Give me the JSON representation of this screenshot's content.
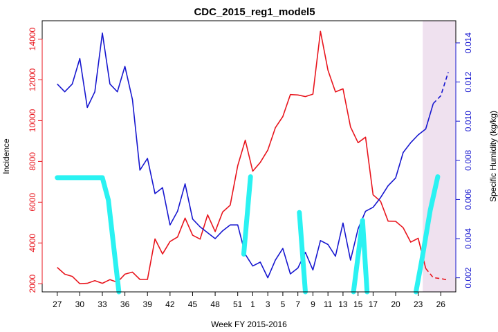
{
  "chart_data": {
    "type": "line",
    "title": "CDC_2015_reg1_model5",
    "xlabel": "Week FY 2015-2016",
    "ylabel_left": "Incidence",
    "ylabel_right": "Specific Humidity (kg/kg)",
    "x_tick_labels": [
      "27",
      "30",
      "33",
      "36",
      "39",
      "42",
      "45",
      "48",
      "51",
      "1",
      "3",
      "5",
      "7",
      "9",
      "11",
      "13",
      "15",
      "17",
      "20",
      "23",
      "26"
    ],
    "x_tick_index": [
      0,
      3,
      6,
      9,
      12,
      15,
      18,
      21,
      24,
      26,
      28,
      30,
      32,
      34,
      36,
      38,
      40,
      42,
      45,
      48,
      51
    ],
    "xlim": [
      -2,
      53
    ],
    "y_left": {
      "ticks": [
        2000,
        4000,
        6000,
        8000,
        10000,
        12000,
        14000
      ],
      "range": [
        1600,
        14900
      ]
    },
    "y_right": {
      "ticks": [
        0.002,
        0.004,
        0.006,
        0.008,
        0.01,
        0.012,
        0.014
      ],
      "tick_labels": [
        "0.002",
        "0.004",
        "0.006",
        "0.008",
        "0.010",
        "0.012",
        "0.014"
      ],
      "range": [
        0.00128,
        0.01513
      ]
    },
    "colors": {
      "incidence": "#e8141c",
      "humidity": "#1616cf",
      "cyan": "#2af2f2",
      "shade": "#efe1ef",
      "left_axis": "#e8141c",
      "right_axis": "#1616cf"
    },
    "forecast_region": {
      "x_start": 48.6,
      "x_end": 53
    },
    "series": [
      {
        "role": "incidence",
        "axis": "left",
        "style": "solid",
        "x": [
          0,
          1,
          2,
          3,
          4,
          5,
          6,
          7,
          8,
          9,
          10,
          11,
          12,
          13,
          14,
          15,
          16,
          17,
          18,
          19,
          20,
          21,
          22,
          23,
          24,
          25,
          26,
          27,
          28,
          29,
          30,
          31,
          32,
          33,
          34,
          35,
          36,
          37,
          38,
          39,
          40,
          41,
          42,
          43,
          44,
          45,
          46,
          47,
          48,
          49
        ],
        "y": [
          2800,
          2470,
          2360,
          2000,
          2020,
          2150,
          2020,
          2200,
          2070,
          2470,
          2570,
          2210,
          2210,
          4200,
          3460,
          4070,
          4290,
          5220,
          4380,
          4190,
          5380,
          4560,
          5520,
          5850,
          7790,
          9040,
          7520,
          7950,
          8560,
          9650,
          10200,
          11280,
          11260,
          11180,
          11300,
          14380,
          12470,
          11410,
          11560,
          9690,
          8920,
          9190,
          6360,
          6040,
          5070,
          5060,
          4750,
          4040,
          4230,
          2750
        ]
      },
      {
        "role": "incidence",
        "axis": "left",
        "style": "dashed",
        "x": [
          49,
          50,
          51,
          52
        ],
        "y": [
          2750,
          2300,
          2250,
          2180
        ]
      },
      {
        "role": "humidity",
        "axis": "right",
        "style": "solid",
        "x": [
          0,
          1,
          2,
          3,
          4,
          5,
          6,
          7,
          8,
          9,
          10,
          11,
          12,
          13,
          14,
          15,
          16,
          17,
          18,
          19,
          20,
          21,
          22,
          23,
          24,
          25,
          26,
          27,
          28,
          29,
          30,
          31,
          32,
          33,
          34,
          35,
          36,
          37,
          38,
          39,
          40,
          41,
          42,
          43,
          44,
          45,
          46,
          47,
          48,
          49,
          50
        ],
        "y": [
          0.0119,
          0.0115,
          0.0119,
          0.0132,
          0.0107,
          0.0115,
          0.0145,
          0.0119,
          0.0115,
          0.0128,
          0.0111,
          0.0075,
          0.0081,
          0.0063,
          0.0066,
          0.0047,
          0.0054,
          0.0068,
          0.005,
          0.0046,
          0.0043,
          0.004,
          0.0044,
          0.0047,
          0.0047,
          0.0032,
          0.0026,
          0.0028,
          0.002,
          0.0029,
          0.0035,
          0.0022,
          0.0025,
          0.0033,
          0.0024,
          0.0039,
          0.0037,
          0.0031,
          0.0048,
          0.0029,
          0.0045,
          0.0054,
          0.0056,
          0.0061,
          0.0067,
          0.0071,
          0.0084,
          0.0089,
          0.0093,
          0.0096,
          0.0109
        ]
      },
      {
        "role": "humidity",
        "axis": "right",
        "style": "dashed",
        "x": [
          50,
          51,
          52
        ],
        "y": [
          0.0109,
          0.0113,
          0.0125
        ]
      },
      {
        "role": "cyan",
        "axis": "left",
        "style": "thick",
        "segments": [
          {
            "x": [
              0,
              6,
              6.8,
              8.2
            ],
            "y": [
              7200,
              7200,
              6100,
              1600
            ]
          },
          {
            "x": [
              24.8,
              25.7
            ],
            "y": [
              3450,
              7250
            ]
          },
          {
            "x": [
              32.2,
              33
            ],
            "y": [
              5500,
              1600
            ]
          },
          {
            "x": [
              39.4,
              40.6
            ],
            "y": [
              1600,
              5100
            ]
          },
          {
            "x": [
              40.6,
              41.2
            ],
            "y": [
              5100,
              1600
            ]
          },
          {
            "x": [
              47.7,
              48.5,
              49.6,
              50.6
            ],
            "y": [
              1600,
              3200,
              5600,
              7250
            ]
          }
        ]
      }
    ]
  }
}
